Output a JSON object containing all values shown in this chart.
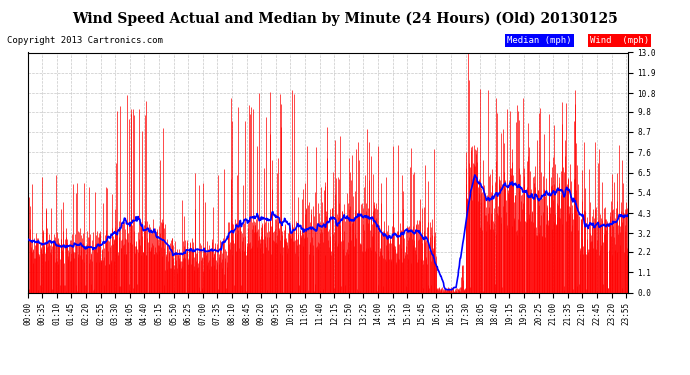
{
  "title": "Wind Speed Actual and Median by Minute (24 Hours) (Old) 20130125",
  "copyright": "Copyright 2013 Cartronics.com",
  "legend_median_label": "Median (mph)",
  "legend_wind_label": "Wind  (mph)",
  "median_color": "#0000ff",
  "wind_color": "#ff0000",
  "ylim": [
    0.0,
    13.0
  ],
  "yticks": [
    0.0,
    1.1,
    2.2,
    3.2,
    4.3,
    5.4,
    6.5,
    7.6,
    8.7,
    9.8,
    10.8,
    11.9,
    13.0
  ],
  "background_color": "#ffffff",
  "grid_color": "#b0b0b0",
  "title_fontsize": 10,
  "copyright_fontsize": 6.5,
  "tick_fontsize": 5.5,
  "n_minutes": 1440,
  "tick_step": 35
}
